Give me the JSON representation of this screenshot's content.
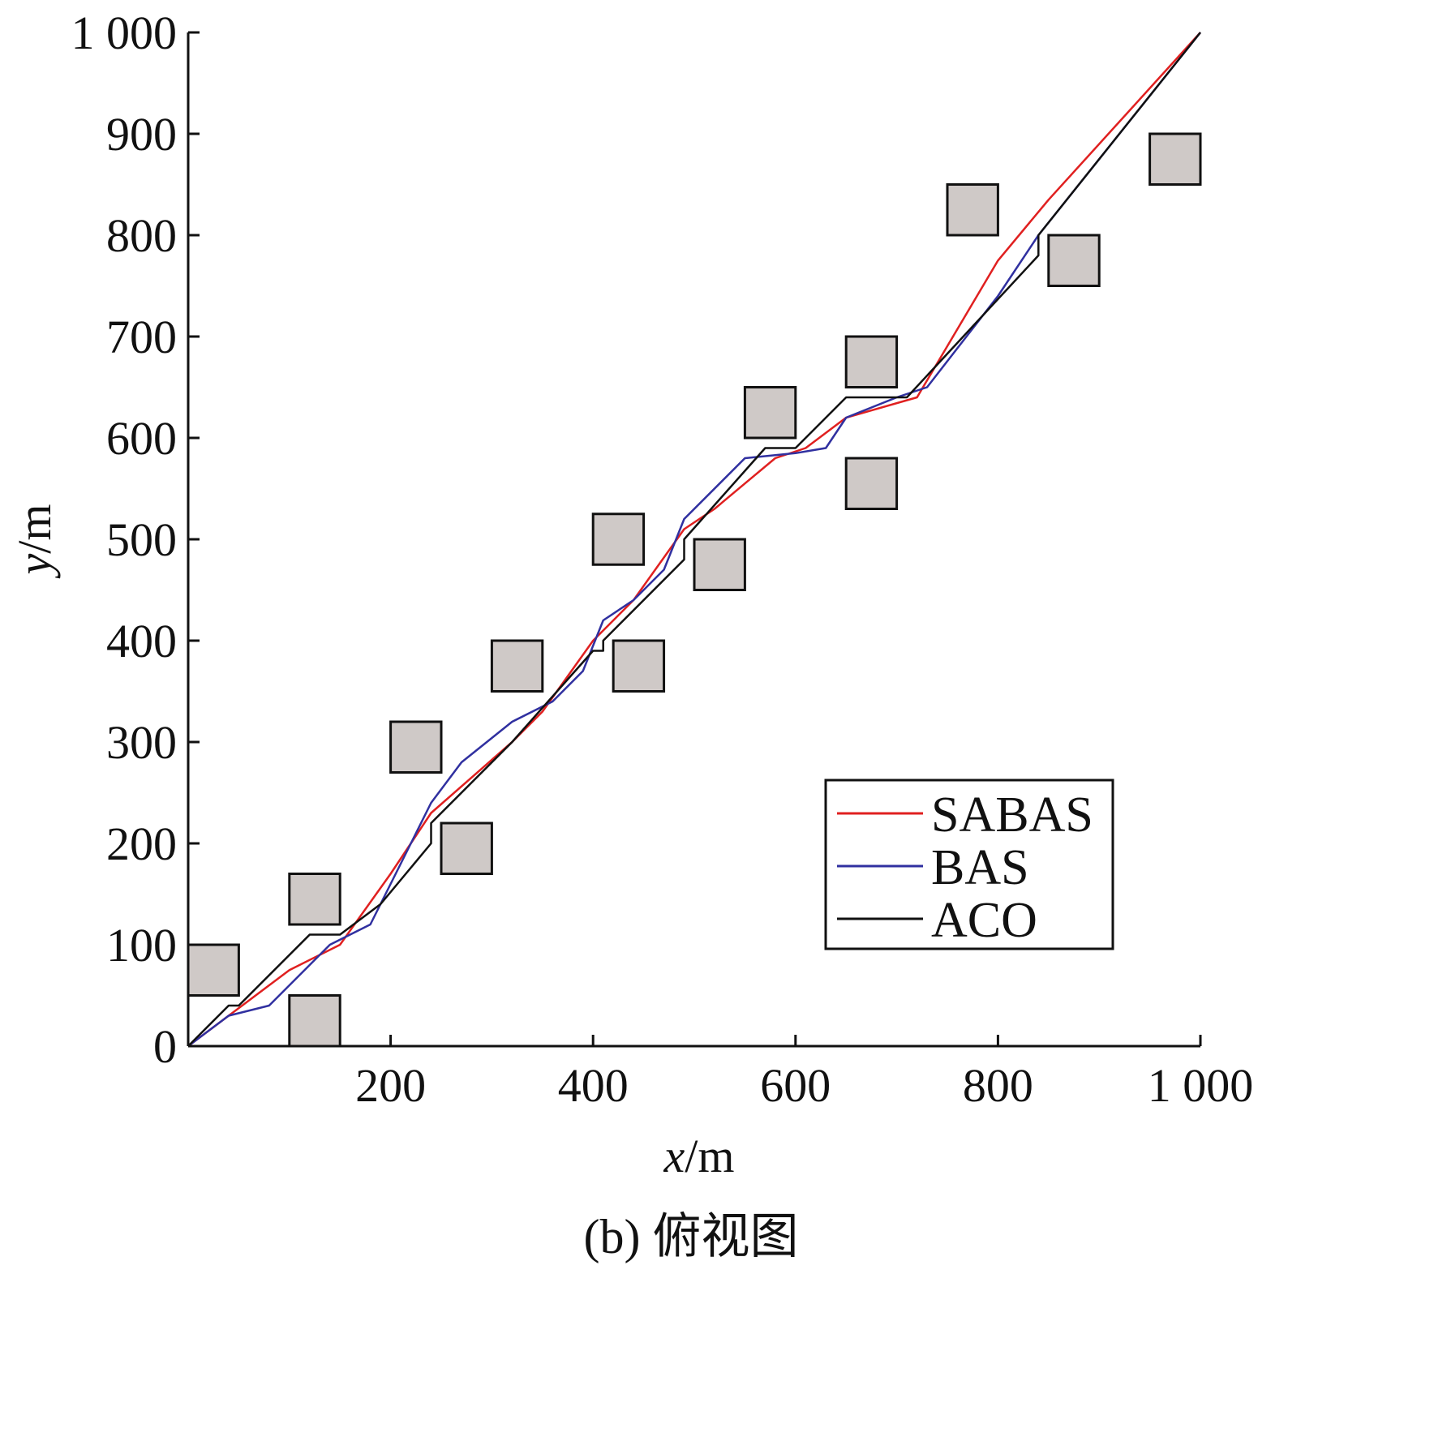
{
  "caption": "(b) 俯视图",
  "chart_data": {
    "type": "line",
    "xlabel": {
      "var": "x",
      "unit": "/m"
    },
    "ylabel": {
      "var": "y",
      "unit": "/m"
    },
    "xlim": [
      0,
      1000
    ],
    "ylim": [
      0,
      1000
    ],
    "x_ticks": [
      {
        "value": 200,
        "label": "200"
      },
      {
        "value": 400,
        "label": "400"
      },
      {
        "value": 600,
        "label": "600"
      },
      {
        "value": 800,
        "label": "800"
      },
      {
        "value": 1000,
        "label": "1 000"
      }
    ],
    "y_ticks": [
      {
        "value": 0,
        "label": "0"
      },
      {
        "value": 100,
        "label": "100"
      },
      {
        "value": 200,
        "label": "200"
      },
      {
        "value": 300,
        "label": "300"
      },
      {
        "value": 400,
        "label": "400"
      },
      {
        "value": 500,
        "label": "500"
      },
      {
        "value": 600,
        "label": "600"
      },
      {
        "value": 700,
        "label": "700"
      },
      {
        "value": 800,
        "label": "800"
      },
      {
        "value": 900,
        "label": "900"
      },
      {
        "value": 1000,
        "label": "1 000"
      }
    ],
    "grid": false,
    "legend_position": "lower-right",
    "obstacles": [
      {
        "x": [
          0,
          50
        ],
        "y": [
          50,
          100
        ]
      },
      {
        "x": [
          100,
          150
        ],
        "y": [
          0,
          50
        ]
      },
      {
        "x": [
          100,
          150
        ],
        "y": [
          120,
          170
        ]
      },
      {
        "x": [
          200,
          250
        ],
        "y": [
          270,
          320
        ]
      },
      {
        "x": [
          250,
          300
        ],
        "y": [
          170,
          220
        ]
      },
      {
        "x": [
          300,
          350
        ],
        "y": [
          350,
          400
        ]
      },
      {
        "x": [
          400,
          450
        ],
        "y": [
          475,
          525
        ]
      },
      {
        "x": [
          420,
          470
        ],
        "y": [
          350,
          400
        ]
      },
      {
        "x": [
          500,
          550
        ],
        "y": [
          450,
          500
        ]
      },
      {
        "x": [
          550,
          600
        ],
        "y": [
          600,
          650
        ]
      },
      {
        "x": [
          650,
          700
        ],
        "y": [
          530,
          580
        ]
      },
      {
        "x": [
          650,
          700
        ],
        "y": [
          650,
          700
        ]
      },
      {
        "x": [
          750,
          800
        ],
        "y": [
          800,
          850
        ]
      },
      {
        "x": [
          850,
          900
        ],
        "y": [
          750,
          800
        ]
      },
      {
        "x": [
          950,
          1000
        ],
        "y": [
          850,
          900
        ]
      }
    ],
    "series": [
      {
        "name": "SABAS",
        "color": "#e02020",
        "points": [
          [
            0,
            0
          ],
          [
            40,
            30
          ],
          [
            100,
            75
          ],
          [
            150,
            100
          ],
          [
            200,
            170
          ],
          [
            240,
            230
          ],
          [
            280,
            265
          ],
          [
            320,
            300
          ],
          [
            350,
            330
          ],
          [
            400,
            400
          ],
          [
            440,
            440
          ],
          [
            490,
            510
          ],
          [
            520,
            530
          ],
          [
            550,
            555
          ],
          [
            580,
            580
          ],
          [
            610,
            590
          ],
          [
            650,
            620
          ],
          [
            720,
            640
          ],
          [
            800,
            775
          ],
          [
            850,
            835
          ],
          [
            1000,
            1000
          ]
        ]
      },
      {
        "name": "BAS",
        "color": "#3030a0",
        "points": [
          [
            0,
            0
          ],
          [
            40,
            30
          ],
          [
            80,
            40
          ],
          [
            140,
            100
          ],
          [
            180,
            120
          ],
          [
            220,
            200
          ],
          [
            240,
            240
          ],
          [
            270,
            280
          ],
          [
            320,
            320
          ],
          [
            360,
            340
          ],
          [
            390,
            370
          ],
          [
            410,
            420
          ],
          [
            440,
            440
          ],
          [
            470,
            470
          ],
          [
            490,
            520
          ],
          [
            550,
            580
          ],
          [
            600,
            585
          ],
          [
            630,
            590
          ],
          [
            650,
            620
          ],
          [
            700,
            640
          ],
          [
            730,
            650
          ],
          [
            800,
            740
          ],
          [
            840,
            800
          ],
          [
            1000,
            1000
          ]
        ]
      },
      {
        "name": "ACO",
        "color": "#111111",
        "points": [
          [
            0,
            0
          ],
          [
            40,
            40
          ],
          [
            50,
            40
          ],
          [
            120,
            110
          ],
          [
            150,
            110
          ],
          [
            190,
            140
          ],
          [
            240,
            200
          ],
          [
            240,
            220
          ],
          [
            320,
            300
          ],
          [
            400,
            390
          ],
          [
            410,
            390
          ],
          [
            410,
            400
          ],
          [
            480,
            470
          ],
          [
            490,
            480
          ],
          [
            490,
            500
          ],
          [
            570,
            590
          ],
          [
            600,
            590
          ],
          [
            650,
            640
          ],
          [
            710,
            640
          ],
          [
            840,
            780
          ],
          [
            840,
            800
          ],
          [
            1000,
            1000
          ]
        ]
      }
    ]
  }
}
